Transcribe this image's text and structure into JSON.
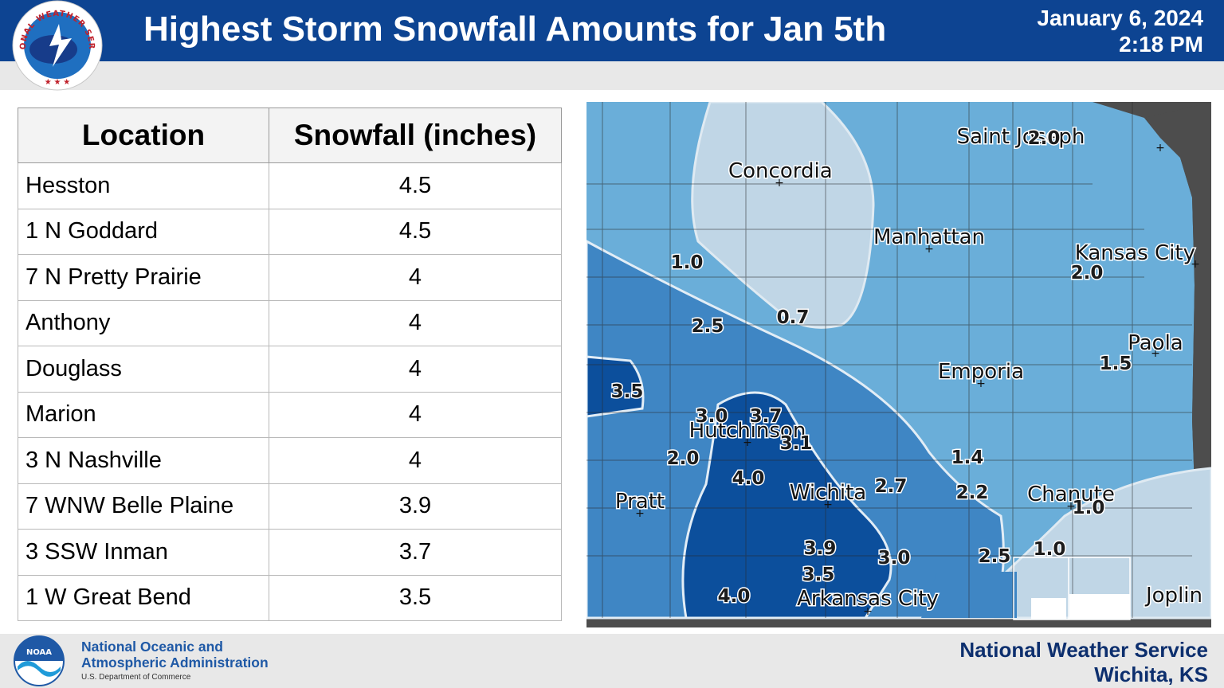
{
  "header": {
    "title": "Highest Storm Snowfall Amounts for Jan 5th",
    "date": "January 6, 2024",
    "time": "2:18 PM",
    "logo_text": "NATIONAL WEATHER SERVICE",
    "logo_icon": "nws-logo-icon"
  },
  "table": {
    "columns": [
      "Location",
      "Snowfall (inches)"
    ],
    "rows": [
      {
        "location": "Hesston",
        "snowfall": "4.5"
      },
      {
        "location": "1 N Goddard",
        "snowfall": "4.5"
      },
      {
        "location": "7 N Pretty Prairie",
        "snowfall": "4"
      },
      {
        "location": "Anthony",
        "snowfall": "4"
      },
      {
        "location": "Douglass",
        "snowfall": "4"
      },
      {
        "location": "Marion",
        "snowfall": "4"
      },
      {
        "location": "3 N Nashville",
        "snowfall": "4"
      },
      {
        "location": "7 WNW Belle Plaine",
        "snowfall": "3.9"
      },
      {
        "location": "3 SSW Inman",
        "snowfall": "3.7"
      },
      {
        "location": "1 W Great Bend",
        "snowfall": "3.5"
      }
    ]
  },
  "map": {
    "cities": [
      "Concordia",
      "Saint Joseph",
      "Manhattan",
      "Kansas City",
      "Paola",
      "Emporia",
      "Hutchinson",
      "Wichita",
      "Pratt",
      "Chanute",
      "Arkansas City",
      "Joplin"
    ],
    "contour_labels": [
      "2.0",
      "1.0",
      "2.0",
      "0.7",
      "2.5",
      "1.5",
      "3.5",
      "3.0",
      "3.7",
      "3.1",
      "1.4",
      "2.0",
      "4.0",
      "2.7",
      "2.2",
      "1.0",
      "3.9",
      "3.0",
      "2.5",
      "1.0",
      "3.5",
      "4.0"
    ],
    "colors": {
      "lightest": "#c0d6e6",
      "light": "#6aaed9",
      "medium": "#3f86c4",
      "dark": "#0c4f9c",
      "outside": "#4d4d4d"
    }
  },
  "footer": {
    "agency_line1": "National Oceanic and",
    "agency_line2": "Atmospheric Administration",
    "department": "U.S. Department of Commerce",
    "noaa_badge": "NOAA",
    "office_line1": "National Weather Service",
    "office_line2": "Wichita, KS",
    "logo_icon": "noaa-logo-icon"
  }
}
